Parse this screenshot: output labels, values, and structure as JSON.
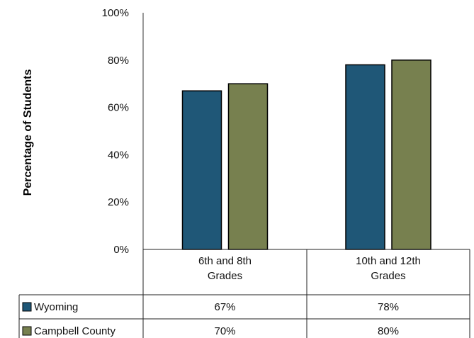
{
  "chart_data": {
    "type": "bar",
    "title": "",
    "xlabel": "",
    "ylabel": "Percentage of Students",
    "ylim": [
      0,
      100
    ],
    "yticks": [
      "0%",
      "20%",
      "40%",
      "60%",
      "80%",
      "100%"
    ],
    "categories": [
      [
        "6th and 8th",
        "Grades"
      ],
      [
        "10th and 12th",
        "Grades"
      ]
    ],
    "series": [
      {
        "name": "Wyoming",
        "values": [
          67,
          78
        ],
        "labels": [
          "67%",
          "78%"
        ],
        "color": "#1f5777"
      },
      {
        "name": "Campbell County",
        "values": [
          70,
          80
        ],
        "labels": [
          "70%",
          "80%"
        ],
        "color": "#77804f"
      }
    ],
    "grid": false,
    "legend": "data-table"
  }
}
